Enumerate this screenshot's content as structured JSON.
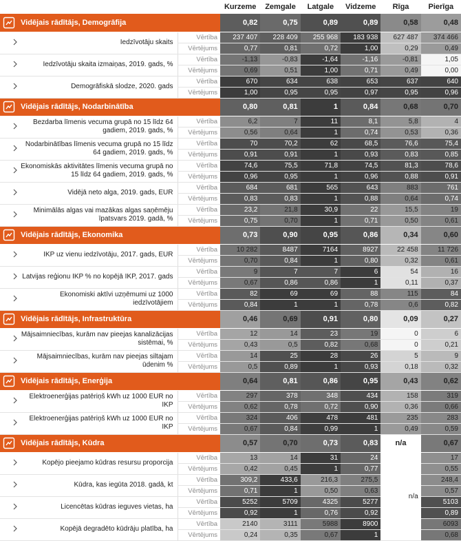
{
  "columns": [
    "Kurzeme",
    "Zemgale",
    "Latgale",
    "Vidzeme",
    "Rīga",
    "Pierīga"
  ],
  "row_labels": [
    "Vērtība",
    "Vērtējums"
  ],
  "sections": [
    {
      "title": "Vidējais rādītājs, Demogrāfija",
      "values": [
        "0,82",
        "0,75",
        "0,89",
        "0,89",
        "0,58",
        "0,48"
      ],
      "indicators": [
        {
          "label": "Iedzīvotāju skaits",
          "value": [
            "237 407",
            "228 409",
            "255 968",
            "183 938",
            "627 487",
            "374 466"
          ],
          "score": [
            "0,77",
            "0,81",
            "0,72",
            "1,00",
            "0,29",
            "0,49"
          ]
        },
        {
          "label": "Iedzīvotāju skaita izmaiņas, 2019. gads, %",
          "value": [
            "-1,13",
            "-0,83",
            "-1,64",
            "-1,16",
            "-0,81",
            "1,05"
          ],
          "score": [
            "0,69",
            "0,51",
            "1,00",
            "0,71",
            "0,49",
            "0,00"
          ]
        },
        {
          "label": "Demogrāfiskā slodze, 2020. gads",
          "value": [
            "670",
            "634",
            "638",
            "653",
            "637",
            "640"
          ],
          "score": [
            "1,00",
            "0,95",
            "0,95",
            "0,97",
            "0,95",
            "0,96"
          ]
        }
      ]
    },
    {
      "title": "Vidējais rādītājs, Nodarbinātība",
      "values": [
        "0,80",
        "0,81",
        "1",
        "0,84",
        "0,68",
        "0,70"
      ],
      "indicators": [
        {
          "label": "Bezdarba līmenis vecuma grupā no 15 līdz 64 gadiem, 2019. gads, %",
          "value": [
            "6,2",
            "7",
            "11",
            "8,1",
            "5,8",
            "4"
          ],
          "score": [
            "0,56",
            "0,64",
            "1",
            "0,74",
            "0,53",
            "0,36"
          ]
        },
        {
          "label": "Nodarbinātības līmenis vecuma grupā no 15 līdz 64 gadiem, 2019. gads, %",
          "value": [
            "70",
            "70,2",
            "62",
            "68,5",
            "76,6",
            "75,4"
          ],
          "score": [
            "0,91",
            "0,91",
            "1",
            "0,93",
            "0,83",
            "0,85"
          ]
        },
        {
          "label": "Ekonomiskās aktivitātes līmenis vecuma grupā no 15 līdz 64 gadiem, 2019. gads, %",
          "value": [
            "74,6",
            "75,5",
            "71,8",
            "74,5",
            "81,3",
            "78,6"
          ],
          "score": [
            "0,96",
            "0,95",
            "1",
            "0,96",
            "0,88",
            "0,91"
          ]
        },
        {
          "label": "Vidējā neto alga, 2019. gads, EUR",
          "value": [
            "684",
            "681",
            "565",
            "643",
            "883",
            "761"
          ],
          "score": [
            "0,83",
            "0,83",
            "1",
            "0,88",
            "0,64",
            "0,74"
          ]
        },
        {
          "label": "Minimālās algas vai mazākas algas saņēmēju īpatsvars 2019. gadā, %",
          "value": [
            "23,2",
            "21,8",
            "30,9",
            "22",
            "15,5",
            "19"
          ],
          "score": [
            "0,75",
            "0,70",
            "1",
            "0,71",
            "0,50",
            "0,61"
          ]
        }
      ]
    },
    {
      "title": "Vidējais rādītājs, Ekonomika",
      "values": [
        "0,73",
        "0,90",
        "0,95",
        "0,86",
        "0,34",
        "0,60"
      ],
      "indicators": [
        {
          "label": "IKP uz vienu iedzīvotāju, 2017. gads, EUR",
          "value": [
            "10 282",
            "8487",
            "7164",
            "8927",
            "22 458",
            "11 726"
          ],
          "score": [
            "0,70",
            "0,84",
            "1",
            "0,80",
            "0,32",
            "0,61"
          ]
        },
        {
          "label": "Latvijas reģionu IKP % no kopējā IKP, 2017. gads",
          "value": [
            "9",
            "7",
            "7",
            "6",
            "54",
            "16"
          ],
          "score": [
            "0,67",
            "0,86",
            "0,86",
            "1",
            "0,11",
            "0,37"
          ]
        },
        {
          "label": "Ekonomiski aktīvi uzņēmumi uz 1000 iedzīvotājiem",
          "value": [
            "82",
            "69",
            "69",
            "88",
            "115",
            "84"
          ],
          "score": [
            "0,84",
            "1",
            "1",
            "0,78",
            "0,6",
            "0,82"
          ]
        }
      ]
    },
    {
      "title": "Vidējais rādītājs, Infrastruktūra",
      "values": [
        "0,46",
        "0,69",
        "0,91",
        "0,80",
        "0,09",
        "0,27"
      ],
      "indicators": [
        {
          "label": "Mājsaimniecības, kurām nav pieejas kanalizācijas sistēmai, %",
          "value": [
            "12",
            "14",
            "23",
            "19",
            "0",
            "6"
          ],
          "score": [
            "0,43",
            "0,5",
            "0,82",
            "0,68",
            "0",
            "0,21"
          ]
        },
        {
          "label": "Mājsaimniecības, kurām nav pieejas siltajam ūdenim %",
          "value": [
            "14",
            "25",
            "28",
            "26",
            "5",
            "9"
          ],
          "score": [
            "0,5",
            "0,89",
            "1",
            "0,93",
            "0,18",
            "0,32"
          ]
        }
      ]
    },
    {
      "title": "Vidējais rādītājs, Enerģija",
      "values": [
        "0,64",
        "0,81",
        "0,86",
        "0,95",
        "0,43",
        "0,62"
      ],
      "indicators": [
        {
          "label": "Elektroenerģijas patēriņš kWh uz 1000 EUR no IKP",
          "value": [
            "297",
            "378",
            "348",
            "434",
            "158",
            "319"
          ],
          "score": [
            "0,62",
            "0,78",
            "0,72",
            "0,90",
            "0,36",
            "0,66"
          ]
        },
        {
          "label": "Elektroenerģijas patēriņš kWh uz 1000 EUR no IKP",
          "value": [
            "324",
            "406",
            "478",
            "481",
            "235",
            "283"
          ],
          "score": [
            "0,67",
            "0,84",
            "0,99",
            "1",
            "0,49",
            "0,59"
          ]
        }
      ]
    },
    {
      "title": "Vidējais rādītājs, Kūdra",
      "values": [
        "0,57",
        "0,70",
        "0,73",
        "0,83",
        "n/a",
        "0,67"
      ],
      "riga_note": "n/a",
      "indicators": [
        {
          "label": "Kopējo pieejamo kūdras resursu proporcija",
          "value": [
            "13",
            "14",
            "31",
            "24",
            null,
            "17"
          ],
          "score": [
            "0,42",
            "0,45",
            "1",
            "0,77",
            null,
            "0,55"
          ]
        },
        {
          "label": "Kūdra, kas iegūta 2018. gadā, kt",
          "value": [
            "309,2",
            "433,6",
            "216,3",
            "275,5",
            null,
            "248,4"
          ],
          "score": [
            "0,71",
            "1",
            "0,50",
            "0,63",
            null,
            "0,57"
          ]
        },
        {
          "label": "Licencētas kūdras ieguves vietas, ha",
          "value": [
            "5252",
            "5709",
            "4325",
            "5277",
            null,
            "5103"
          ],
          "score": [
            "0,92",
            "1",
            "0,76",
            "0,92",
            null,
            "0,89"
          ]
        },
        {
          "label": "Kopējā degradēto kūdrāju platība, ha",
          "value": [
            "2140",
            "3111",
            "5988",
            "8900",
            null,
            "6093"
          ],
          "score": [
            "0,24",
            "0,35",
            "0,67",
            "1",
            null,
            "0,68"
          ]
        }
      ]
    }
  ]
}
